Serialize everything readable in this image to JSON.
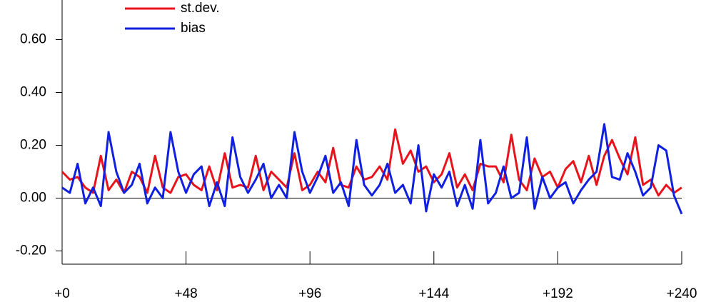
{
  "chart_data": {
    "type": "line",
    "x": [
      0,
      3,
      6,
      9,
      12,
      15,
      18,
      21,
      24,
      27,
      30,
      33,
      36,
      39,
      42,
      45,
      48,
      51,
      54,
      57,
      60,
      63,
      66,
      69,
      72,
      75,
      78,
      81,
      84,
      87,
      90,
      93,
      96,
      99,
      102,
      105,
      108,
      111,
      114,
      117,
      120,
      123,
      126,
      129,
      132,
      135,
      138,
      141,
      144,
      147,
      150,
      153,
      156,
      159,
      162,
      165,
      168,
      171,
      174,
      177,
      180,
      183,
      186,
      189,
      192,
      195,
      198,
      201,
      204,
      207,
      210,
      213,
      216,
      219,
      222,
      225,
      228,
      231,
      234,
      237,
      240
    ],
    "series": [
      {
        "name": "st.dev.",
        "color": "#e8141c",
        "values": [
          0.1,
          0.07,
          0.08,
          0.04,
          0.02,
          0.16,
          0.03,
          0.07,
          0.02,
          0.1,
          0.08,
          0.02,
          0.16,
          0.04,
          0.02,
          0.08,
          0.09,
          0.05,
          0.03,
          0.12,
          0.03,
          0.17,
          0.04,
          0.05,
          0.04,
          0.16,
          0.03,
          0.1,
          0.07,
          0.04,
          0.17,
          0.03,
          0.05,
          0.1,
          0.06,
          0.19,
          0.05,
          0.04,
          0.12,
          0.07,
          0.08,
          0.12,
          0.07,
          0.26,
          0.13,
          0.18,
          0.1,
          0.12,
          0.06,
          0.09,
          0.17,
          0.04,
          0.09,
          0.03,
          0.13,
          0.12,
          0.12,
          0.06,
          0.24,
          0.07,
          0.03,
          0.15,
          0.08,
          0.1,
          0.04,
          0.11,
          0.14,
          0.06,
          0.16,
          0.05,
          0.16,
          0.22,
          0.15,
          0.09,
          0.23,
          0.05,
          0.07,
          0.01,
          0.05,
          0.02,
          0.04
        ]
      },
      {
        "name": "bias",
        "color": "#1020e0",
        "values": [
          0.04,
          0.02,
          0.13,
          -0.02,
          0.04,
          -0.03,
          0.25,
          0.1,
          0.02,
          0.05,
          0.13,
          -0.02,
          0.04,
          0.0,
          0.25,
          0.1,
          0.02,
          0.09,
          0.12,
          -0.03,
          0.06,
          -0.03,
          0.23,
          0.08,
          0.02,
          0.07,
          0.13,
          0.0,
          0.05,
          0.0,
          0.25,
          0.1,
          0.02,
          0.08,
          0.16,
          0.02,
          0.06,
          -0.03,
          0.22,
          0.05,
          0.01,
          0.05,
          0.13,
          0.02,
          0.05,
          -0.02,
          0.2,
          -0.05,
          0.09,
          0.04,
          0.1,
          -0.03,
          0.05,
          -0.04,
          0.22,
          -0.02,
          0.02,
          0.12,
          0.0,
          0.02,
          0.23,
          -0.04,
          0.08,
          0.0,
          0.04,
          0.06,
          -0.02,
          0.03,
          0.07,
          0.1,
          0.28,
          0.08,
          0.07,
          0.17,
          0.1,
          0.01,
          0.04,
          0.2,
          0.18,
          0.01,
          -0.06
        ]
      }
    ],
    "xlim": [
      0,
      240
    ],
    "xticks": [
      {
        "value": 0,
        "label": "+0"
      },
      {
        "value": 48,
        "label": "+48"
      },
      {
        "value": 96,
        "label": "+96"
      },
      {
        "value": 144,
        "label": "+144"
      },
      {
        "value": 192,
        "label": "+192"
      },
      {
        "value": 240,
        "label": "+240"
      }
    ],
    "ylim": [
      -0.25,
      0.75
    ],
    "yticks": [
      {
        "value": -0.2,
        "label": "-0.20"
      },
      {
        "value": 0,
        "label": "0.00"
      },
      {
        "value": 0.2,
        "label": "0.20"
      },
      {
        "value": 0.4,
        "label": "0.40"
      },
      {
        "value": 0.6,
        "label": "0.60"
      }
    ],
    "legend": "top-left"
  }
}
